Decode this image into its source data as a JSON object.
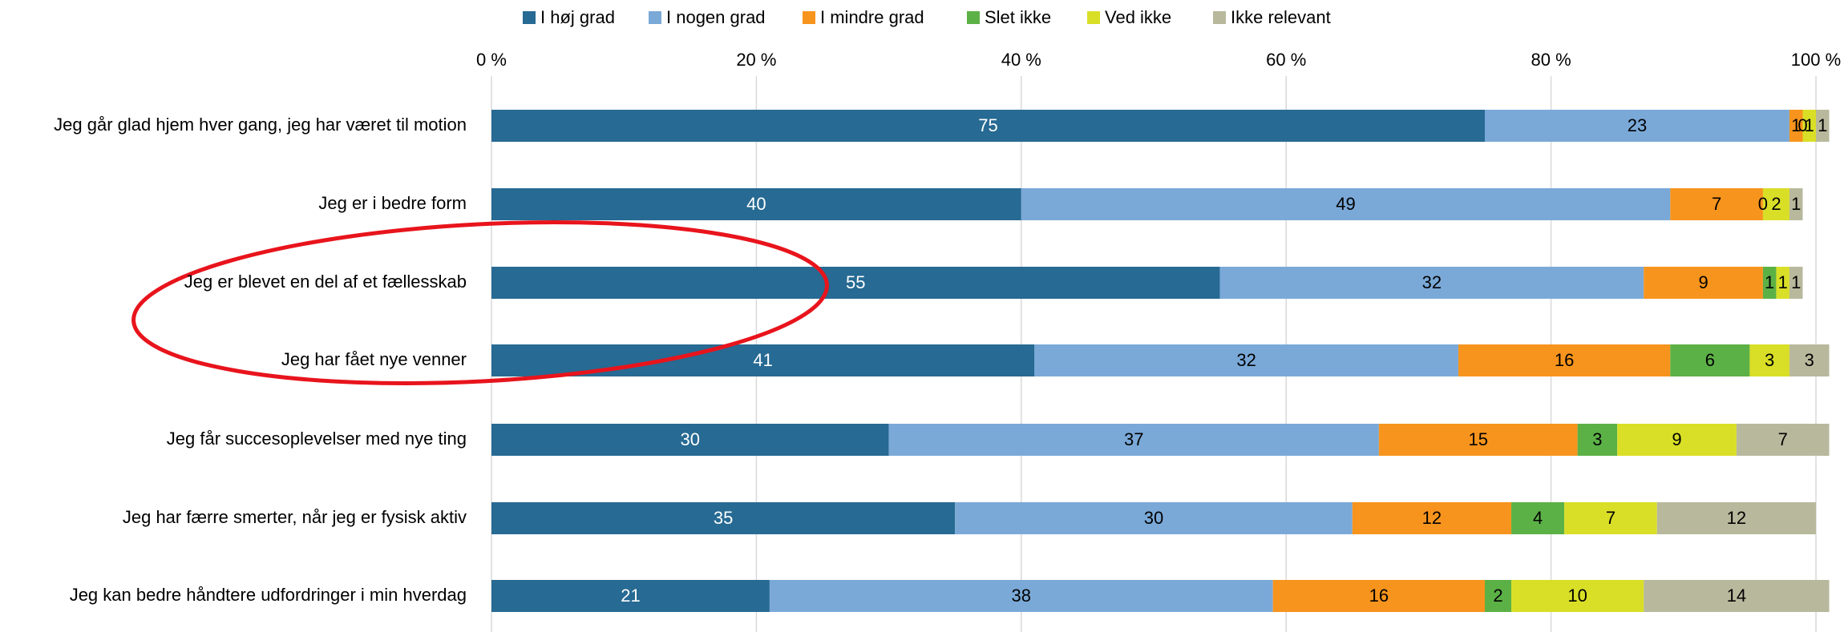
{
  "chart_data": {
    "type": "stacked_bar",
    "orientation": "horizontal",
    "categories": [
      "Jeg går glad hjem hver gang, jeg har været til motion",
      "Jeg er i bedre form",
      "Jeg er blevet en del af et fællesskab",
      "Jeg har fået nye venner",
      "Jeg får succesoplevelser med nye ting",
      "Jeg har færre smerter, når jeg er fysisk aktiv",
      "Jeg kan bedre håndtere udfordringer i min hverdag"
    ],
    "series": [
      {
        "name": "I høj grad",
        "color": "#276a93",
        "values": [
          75,
          40,
          55,
          41,
          30,
          35,
          21
        ]
      },
      {
        "name": "I nogen grad",
        "color": "#7aa9d8",
        "values": [
          23,
          49,
          32,
          32,
          37,
          30,
          38
        ]
      },
      {
        "name": "I mindre grad",
        "color": "#f7941d",
        "values": [
          1,
          7,
          9,
          16,
          15,
          12,
          16
        ]
      },
      {
        "name": "Slet ikke",
        "color": "#5cb146",
        "values": [
          0,
          0,
          1,
          6,
          3,
          4,
          2
        ]
      },
      {
        "name": "Ved ikke",
        "color": "#d9df26",
        "values": [
          1,
          2,
          1,
          3,
          9,
          7,
          10
        ]
      },
      {
        "name": "Ikke relevant",
        "color": "#b8b89d",
        "values": [
          1,
          1,
          1,
          3,
          7,
          12,
          14
        ]
      }
    ],
    "xlim": [
      0,
      100
    ],
    "xticks": [
      {
        "value": 0,
        "label": "0 %"
      },
      {
        "value": 20,
        "label": "20 %"
      },
      {
        "value": 40,
        "label": "40 %"
      },
      {
        "value": 60,
        "label": "60 %"
      },
      {
        "value": 80,
        "label": "80 %"
      },
      {
        "value": 100,
        "label": "100 %"
      }
    ],
    "grid": true,
    "legend": "top"
  }
}
